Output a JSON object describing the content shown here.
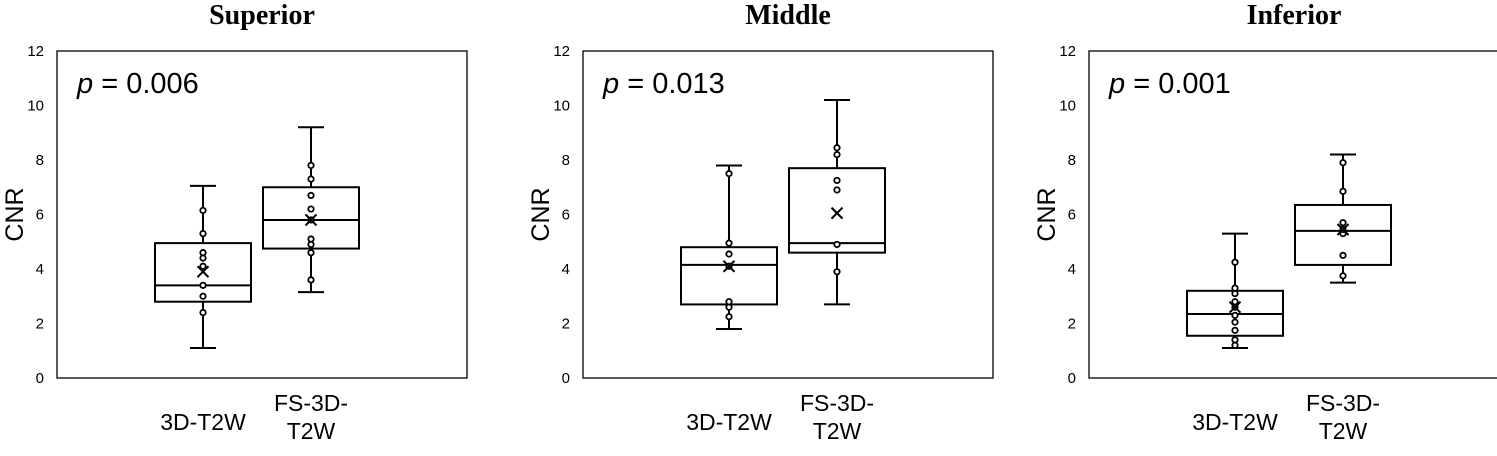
{
  "chart_data": [
    {
      "type": "box",
      "title": "Superior",
      "ylabel": "CNR",
      "ylim": [
        0,
        12
      ],
      "yticks": [
        "0",
        "2",
        "4",
        "6",
        "8",
        "10",
        "12"
      ],
      "annotation_prefix": "p",
      "annotation_suffix": " = 0.006",
      "categories": [
        {
          "label_lines": [
            "3D-T2W"
          ],
          "min": 1.1,
          "q1": 2.8,
          "median": 3.4,
          "q3": 4.95,
          "max": 7.05,
          "mean": 3.9,
          "points": [
            2.4,
            3.0,
            3.4,
            4.1,
            4.4,
            4.6,
            5.3,
            6.15
          ]
        },
        {
          "label_lines": [
            "FS-3D-",
            "T2W"
          ],
          "min": 3.15,
          "q1": 4.75,
          "median": 5.8,
          "q3": 7.0,
          "max": 9.2,
          "mean": 5.8,
          "points": [
            3.6,
            4.6,
            4.9,
            5.1,
            5.8,
            6.2,
            6.7,
            7.3,
            7.8
          ]
        }
      ]
    },
    {
      "type": "box",
      "title": "Middle",
      "ylabel": "CNR",
      "ylim": [
        0,
        12
      ],
      "yticks": [
        "0",
        "2",
        "4",
        "6",
        "8",
        "10",
        "12"
      ],
      "annotation_prefix": "p",
      "annotation_suffix": " = 0.013",
      "categories": [
        {
          "label_lines": [
            "3D-T2W"
          ],
          "min": 1.8,
          "q1": 2.7,
          "median": 4.15,
          "q3": 4.8,
          "max": 7.8,
          "mean": 4.1,
          "points": [
            2.25,
            2.6,
            2.8,
            4.1,
            4.55,
            4.95,
            7.5
          ]
        },
        {
          "label_lines": [
            "FS-3D-",
            "T2W"
          ],
          "min": 2.7,
          "q1": 4.6,
          "median": 4.95,
          "q3": 7.7,
          "max": 10.2,
          "mean": 6.05,
          "points": [
            3.9,
            4.9,
            6.9,
            7.25,
            8.2,
            8.45
          ]
        }
      ]
    },
    {
      "type": "box",
      "title": "Inferior",
      "ylabel": "CNR",
      "ylim": [
        0,
        12
      ],
      "yticks": [
        "0",
        "2",
        "4",
        "6",
        "8",
        "10",
        "12"
      ],
      "annotation_prefix": "p",
      "annotation_suffix": " = 0.001",
      "categories": [
        {
          "label_lines": [
            "3D-T2W"
          ],
          "min": 1.1,
          "q1": 1.55,
          "median": 2.35,
          "q3": 3.2,
          "max": 5.3,
          "mean": 2.6,
          "points": [
            1.2,
            1.4,
            1.75,
            2.05,
            2.3,
            2.6,
            2.8,
            3.1,
            3.3,
            4.25
          ]
        },
        {
          "label_lines": [
            "FS-3D-",
            "T2W"
          ],
          "min": 3.5,
          "q1": 4.15,
          "median": 5.4,
          "q3": 6.35,
          "max": 8.2,
          "mean": 5.45,
          "points": [
            3.75,
            4.5,
            5.3,
            5.45,
            5.7,
            6.85,
            7.9
          ]
        }
      ]
    }
  ]
}
